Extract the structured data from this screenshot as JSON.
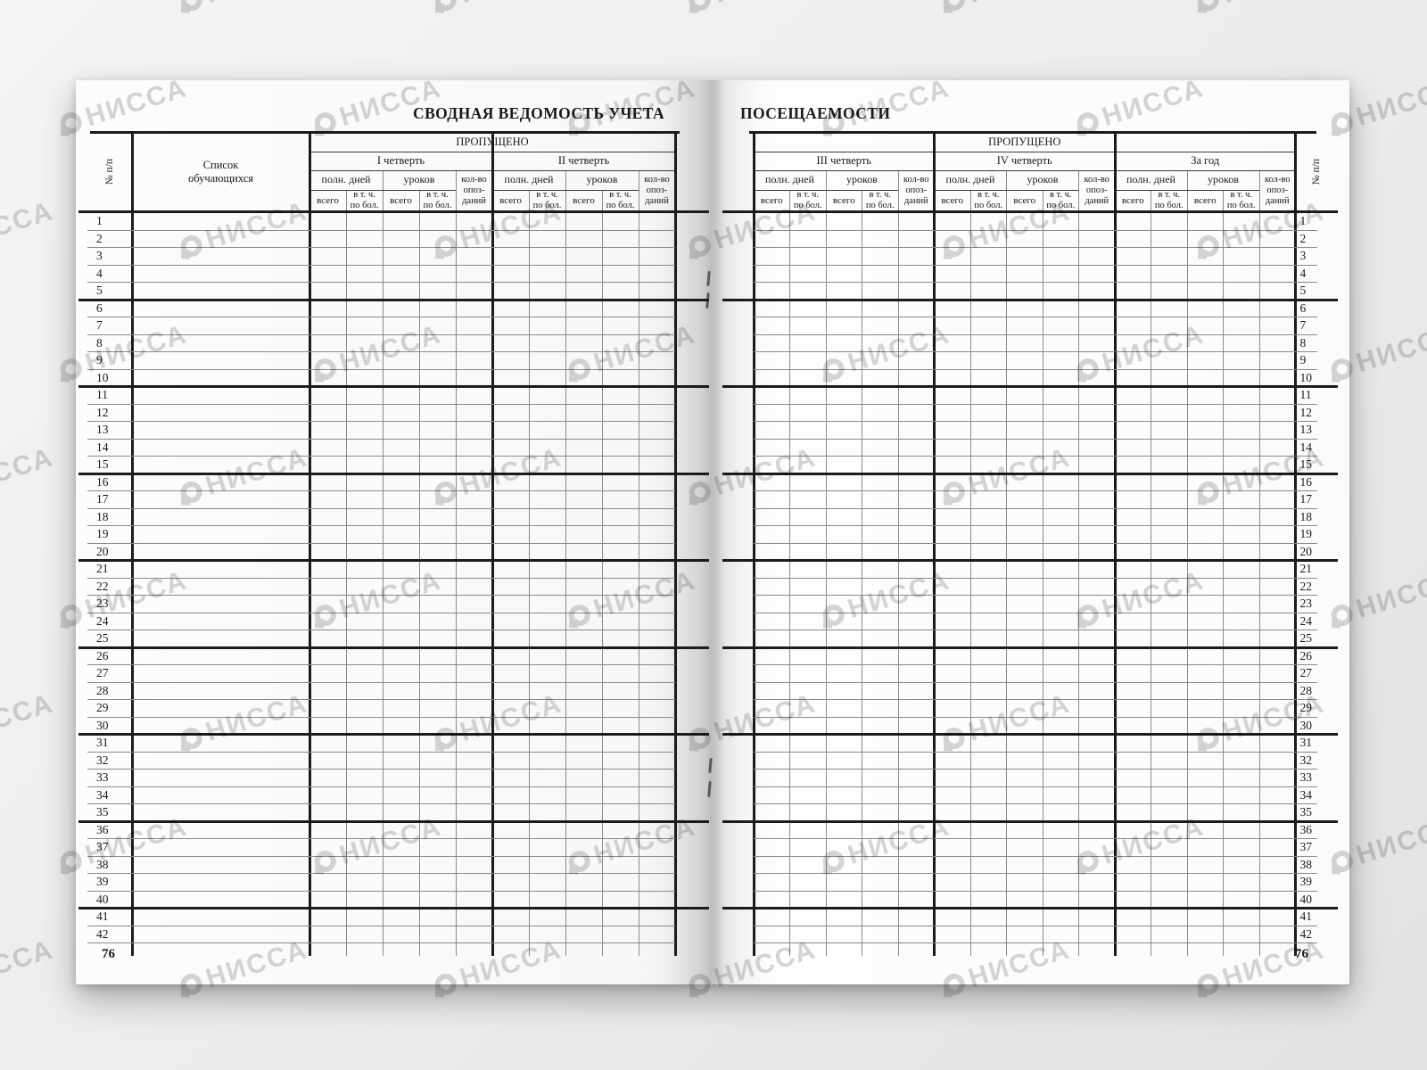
{
  "watermark": {
    "text": "НИССА"
  },
  "titles": {
    "left": "СВОДНАЯ ВЕДОМОСТЬ УЧЕТА",
    "right": "ПОСЕЩАЕМОСТИ"
  },
  "pages": {
    "left": {
      "page_number": "76",
      "quarters": [
        "I четверть",
        "II четверть"
      ]
    },
    "right": {
      "page_number": "76",
      "quarters": [
        "III четверть",
        "IV четверть",
        "За год"
      ]
    }
  },
  "headers": {
    "num": "№ п/п",
    "students_lines": [
      "Список",
      "обучающихся"
    ],
    "missed": "ПРОПУЩЕНО",
    "full_days": "полн. дней",
    "lessons": "уроков",
    "total": "всего",
    "incl_sick_lines": [
      "в т. ч.",
      "по бол."
    ],
    "lateness_lines": [
      "кол-во",
      "опоз-",
      "даний"
    ]
  },
  "rows": {
    "count": 42,
    "first": "1",
    "last": "42"
  },
  "colors": {
    "thick_line": "#1b1b1b",
    "thin_line": "#8a8a8a",
    "header_line": "#3a3a3a",
    "watermark": "#d6d6d6"
  }
}
